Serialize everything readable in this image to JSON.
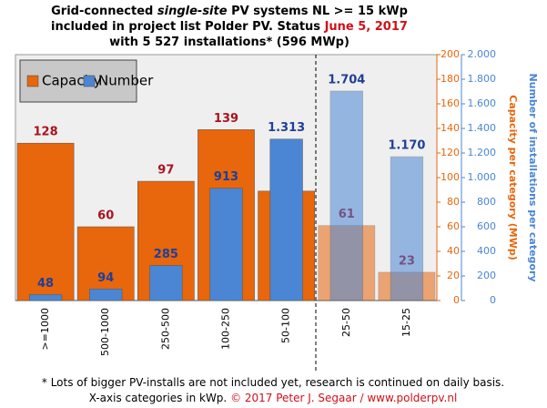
{
  "chart_data": {
    "type": "bar",
    "title_lines": [
      [
        "Grid-connected ",
        "single-site",
        " PV systems NL >= 15 kWp"
      ],
      [
        "included in project list Polder PV. Status ",
        "June 5, 2017"
      ],
      [
        "with 5 527 installations* (596 MWp)"
      ]
    ],
    "categories": [
      ">=1000",
      "500-1000",
      "250-500",
      "100-250",
      "50-100",
      "25-50",
      "15-25"
    ],
    "series": [
      {
        "name": "Capacity",
        "color": "#e8660c",
        "values": [
          128,
          60,
          97,
          139,
          89,
          61,
          23
        ]
      },
      {
        "name": "Number",
        "color": "#4a86d4",
        "axis": "y2",
        "values": [
          48,
          94,
          285,
          913,
          1313,
          1704,
          1170
        ],
        "value_labels": [
          "48",
          "94",
          "285",
          "913",
          "1.313",
          "1.704",
          "1.170"
        ]
      }
    ],
    "ylabel": "Capacity per category (MWp)",
    "y2label": "Number of installations per category",
    "ylim": [
      0,
      200
    ],
    "yticks": [
      0,
      20,
      40,
      60,
      80,
      100,
      120,
      140,
      160,
      180,
      200
    ],
    "y2lim": [
      0,
      2000
    ],
    "y2ticks": [
      0,
      200,
      400,
      600,
      800,
      {
        "value": 1000,
        "label": "1.000"
      },
      {
        "value": 1200,
        "label": "1.200"
      },
      {
        "value": 1400,
        "label": "1.400"
      },
      {
        "value": 1600,
        "label": "1.600"
      },
      {
        "value": 1800,
        "label": "1.800"
      },
      {
        "value": 2000,
        "label": "2.000"
      }
    ],
    "legend": "upper left",
    "footnote_lines": [
      [
        "* Lots of bigger PV-installs are not included yet, research is continued on daily basis."
      ],
      [
        "X-axis categories in kWp. ",
        "© 2017 Peter J. Segaar / www.polderpv.nl"
      ]
    ]
  }
}
